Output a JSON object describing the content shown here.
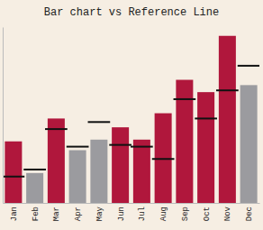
{
  "chart_data": {
    "type": "bar",
    "title": "Bar chart vs Reference Line",
    "categories": [
      "Jan",
      "Feb",
      "Mar",
      "Apr",
      "May",
      "Jun",
      "Jul",
      "Aug",
      "Sep",
      "Oct",
      "Nov",
      "Dec"
    ],
    "series": [
      {
        "type": "bar",
        "colors": [
          "#b0173c",
          "#9b9b9f",
          "#b0173c",
          "#9b9b9f",
          "#9b9b9f",
          "#b0173c",
          "#b0173c",
          "#b0173c",
          "#b0173c",
          "#b0173c",
          "#b0173c",
          "#9b9b9f"
        ],
        "values": [
          35,
          17,
          48,
          30,
          36,
          43,
          36,
          51,
          70,
          63,
          95,
          67
        ]
      },
      {
        "type": "scatter",
        "marker": "hline",
        "color": "#111111",
        "values": [
          15,
          19,
          42,
          32,
          46,
          33,
          32,
          25,
          59,
          48,
          64,
          78
        ]
      }
    ],
    "ylim": [
      0,
      100
    ],
    "tick_labels": "x",
    "grid": false
  }
}
